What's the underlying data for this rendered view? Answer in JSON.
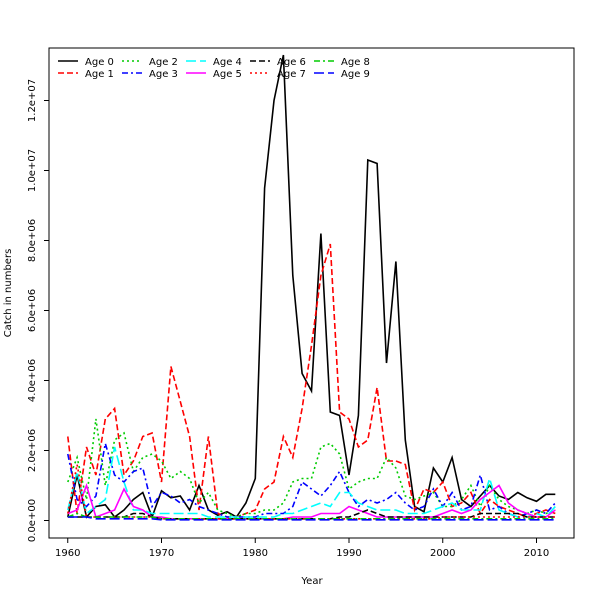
{
  "chart_data": {
    "type": "line",
    "title": "",
    "xlabel": "Year",
    "ylabel": "Catch in numbers",
    "xlim": [
      1958,
      2014
    ],
    "ylim": [
      -500000,
      13500000
    ],
    "x_ticks": [
      1960,
      1970,
      1980,
      1990,
      2000,
      2010
    ],
    "x_tick_labels": [
      "1960",
      "1970",
      "1980",
      "1990",
      "2000",
      "2010"
    ],
    "y_ticks": [
      0,
      2000000,
      4000000,
      6000000,
      8000000,
      10000000,
      12000000
    ],
    "y_tick_labels": [
      "0.0e+00",
      "2.0e+06",
      "4.0e+06",
      "6.0e+06",
      "8.0e+06",
      "1.0e+07",
      "1.2e+07"
    ],
    "grid": false,
    "legend_position": "top-left",
    "x": [
      1960,
      1961,
      1962,
      1963,
      1964,
      1965,
      1966,
      1967,
      1968,
      1969,
      1970,
      1971,
      1972,
      1973,
      1974,
      1975,
      1976,
      1977,
      1978,
      1979,
      1980,
      1981,
      1982,
      1983,
      1984,
      1985,
      1986,
      1987,
      1988,
      1989,
      1990,
      1991,
      1992,
      1993,
      1994,
      1995,
      1996,
      1997,
      1998,
      1999,
      2000,
      2001,
      2002,
      2003,
      2004,
      2005,
      2006,
      2007,
      2008,
      2009,
      2010,
      2011,
      2012
    ],
    "series": [
      {
        "name": "Age 0",
        "color": "#000000",
        "dash": "solid",
        "values": [
          100000,
          1300000,
          100000,
          400000,
          450000,
          100000,
          300000,
          600000,
          800000,
          100000,
          850000,
          650000,
          700000,
          300000,
          1000000,
          300000,
          150000,
          250000,
          100000,
          500000,
          1200000,
          9500000,
          12000000,
          13300000,
          7000000,
          4200000,
          3700000,
          8200000,
          3100000,
          3000000,
          1300000,
          3000000,
          10300000,
          10200000,
          4500000,
          7400000,
          2300000,
          400000,
          250000,
          1500000,
          1100000,
          1800000,
          600000,
          400000,
          700000,
          1000000,
          700000,
          600000,
          800000,
          650000,
          550000,
          750000,
          750000
        ]
      },
      {
        "name": "Age 1",
        "color": "#ff0000",
        "dash": "dashed",
        "values": [
          2400000,
          200000,
          2100000,
          1300000,
          2900000,
          3200000,
          1300000,
          1700000,
          2400000,
          2500000,
          1100000,
          4400000,
          3400000,
          2400000,
          300000,
          2400000,
          200000,
          100000,
          100000,
          200000,
          300000,
          900000,
          1100000,
          2400000,
          1800000,
          3200000,
          5000000,
          7000000,
          7900000,
          3100000,
          2900000,
          2100000,
          2300000,
          3800000,
          1700000,
          1700000,
          1600000,
          300000,
          900000,
          800000,
          1100000,
          400000,
          500000,
          800000,
          200000,
          600000,
          400000,
          300000,
          200000,
          100000,
          200000,
          300000,
          200000
        ]
      },
      {
        "name": "Age 2",
        "color": "#00cc00",
        "dash": "dotted",
        "values": [
          1100000,
          1800000,
          600000,
          2900000,
          1000000,
          2300000,
          2500000,
          1400000,
          1800000,
          1900000,
          1700000,
          1200000,
          1400000,
          1200000,
          500000,
          800000,
          300000,
          200000,
          100000,
          200000,
          200000,
          300000,
          300000,
          500000,
          1100000,
          1200000,
          1200000,
          2100000,
          2200000,
          1900000,
          900000,
          1100000,
          1200000,
          1200000,
          1800000,
          1500000,
          700000,
          600000,
          700000,
          800000,
          400000,
          400000,
          600000,
          1000000,
          400000,
          1000000,
          600000,
          400000,
          300000,
          200000,
          300000,
          200000,
          300000
        ]
      },
      {
        "name": "Age 3",
        "color": "#0000ff",
        "dash": "dashdot",
        "values": [
          1900000,
          600000,
          400000,
          700000,
          2200000,
          1300000,
          1100000,
          1400000,
          1500000,
          400000,
          800000,
          700000,
          500000,
          600000,
          400000,
          300000,
          200000,
          100000,
          100000,
          100000,
          100000,
          200000,
          200000,
          200000,
          400000,
          1100000,
          900000,
          700000,
          1000000,
          1400000,
          800000,
          400000,
          600000,
          500000,
          600000,
          800000,
          500000,
          300000,
          400000,
          900000,
          400000,
          800000,
          300000,
          400000,
          1300000,
          300000,
          400000,
          200000,
          100000,
          200000,
          300000,
          200000,
          500000
        ]
      },
      {
        "name": "Age 4",
        "color": "#00ffff",
        "dash": "longdash",
        "values": [
          300000,
          1400000,
          200000,
          400000,
          600000,
          2100000,
          1100000,
          300000,
          300000,
          200000,
          200000,
          200000,
          200000,
          200000,
          200000,
          100000,
          100000,
          100000,
          100000,
          100000,
          100000,
          100000,
          100000,
          200000,
          200000,
          300000,
          400000,
          500000,
          400000,
          800000,
          800000,
          500000,
          400000,
          300000,
          300000,
          300000,
          200000,
          200000,
          200000,
          300000,
          400000,
          500000,
          300000,
          300000,
          300000,
          1200000,
          300000,
          200000,
          100000,
          100000,
          200000,
          100000,
          400000
        ]
      },
      {
        "name": "Age 5",
        "color": "#ff00ff",
        "dash": "solid",
        "values": [
          200000,
          300000,
          1000000,
          100000,
          200000,
          300000,
          900000,
          400000,
          300000,
          100000,
          100000,
          50000,
          50000,
          50000,
          50000,
          50000,
          50000,
          50000,
          50000,
          50000,
          50000,
          50000,
          50000,
          50000,
          100000,
          100000,
          100000,
          200000,
          200000,
          200000,
          400000,
          300000,
          200000,
          100000,
          100000,
          100000,
          100000,
          100000,
          100000,
          100000,
          200000,
          300000,
          200000,
          300000,
          600000,
          800000,
          1000000,
          500000,
          300000,
          200000,
          100000,
          100000,
          300000
        ]
      },
      {
        "name": "Age 6",
        "color": "#000000",
        "dash": "dashed",
        "values": [
          100000,
          100000,
          100000,
          100000,
          100000,
          100000,
          100000,
          200000,
          200000,
          100000,
          50000,
          50000,
          50000,
          50000,
          50000,
          50000,
          50000,
          50000,
          50000,
          50000,
          50000,
          50000,
          50000,
          50000,
          50000,
          50000,
          50000,
          50000,
          50000,
          100000,
          100000,
          200000,
          300000,
          200000,
          100000,
          100000,
          100000,
          100000,
          100000,
          100000,
          100000,
          100000,
          100000,
          100000,
          200000,
          200000,
          200000,
          200000,
          200000,
          100000,
          100000,
          100000,
          100000
        ]
      },
      {
        "name": "Age 7",
        "color": "#ff0000",
        "dash": "dotted",
        "values": [
          200000,
          1600000,
          100000,
          100000,
          100000,
          100000,
          100000,
          100000,
          100000,
          100000,
          50000,
          50000,
          50000,
          50000,
          50000,
          50000,
          50000,
          50000,
          50000,
          50000,
          50000,
          50000,
          50000,
          50000,
          50000,
          50000,
          50000,
          50000,
          50000,
          50000,
          50000,
          50000,
          50000,
          50000,
          50000,
          50000,
          50000,
          50000,
          50000,
          50000,
          100000,
          100000,
          100000,
          100000,
          100000,
          100000,
          100000,
          100000,
          100000,
          100000,
          100000,
          100000,
          100000
        ]
      },
      {
        "name": "Age 8",
        "color": "#00cc00",
        "dash": "dashdot",
        "values": [
          100000,
          200000,
          100000,
          100000,
          100000,
          100000,
          100000,
          100000,
          100000,
          100000,
          50000,
          50000,
          50000,
          50000,
          50000,
          50000,
          50000,
          50000,
          50000,
          50000,
          50000,
          50000,
          50000,
          50000,
          50000,
          50000,
          50000,
          50000,
          50000,
          50000,
          50000,
          50000,
          50000,
          50000,
          50000,
          50000,
          50000,
          50000,
          50000,
          50000,
          50000,
          50000,
          50000,
          50000,
          50000,
          50000,
          50000,
          50000,
          50000,
          50000,
          50000,
          50000,
          50000
        ]
      },
      {
        "name": "Age 9",
        "color": "#0000ff",
        "dash": "longdash",
        "values": [
          100000,
          100000,
          100000,
          50000,
          50000,
          50000,
          50000,
          50000,
          50000,
          50000,
          20000,
          20000,
          20000,
          20000,
          20000,
          20000,
          20000,
          20000,
          20000,
          20000,
          20000,
          20000,
          20000,
          20000,
          20000,
          20000,
          20000,
          20000,
          20000,
          20000,
          20000,
          20000,
          20000,
          20000,
          20000,
          20000,
          20000,
          20000,
          20000,
          20000,
          20000,
          20000,
          20000,
          20000,
          20000,
          20000,
          20000,
          20000,
          20000,
          20000,
          20000,
          20000,
          20000
        ]
      }
    ]
  }
}
